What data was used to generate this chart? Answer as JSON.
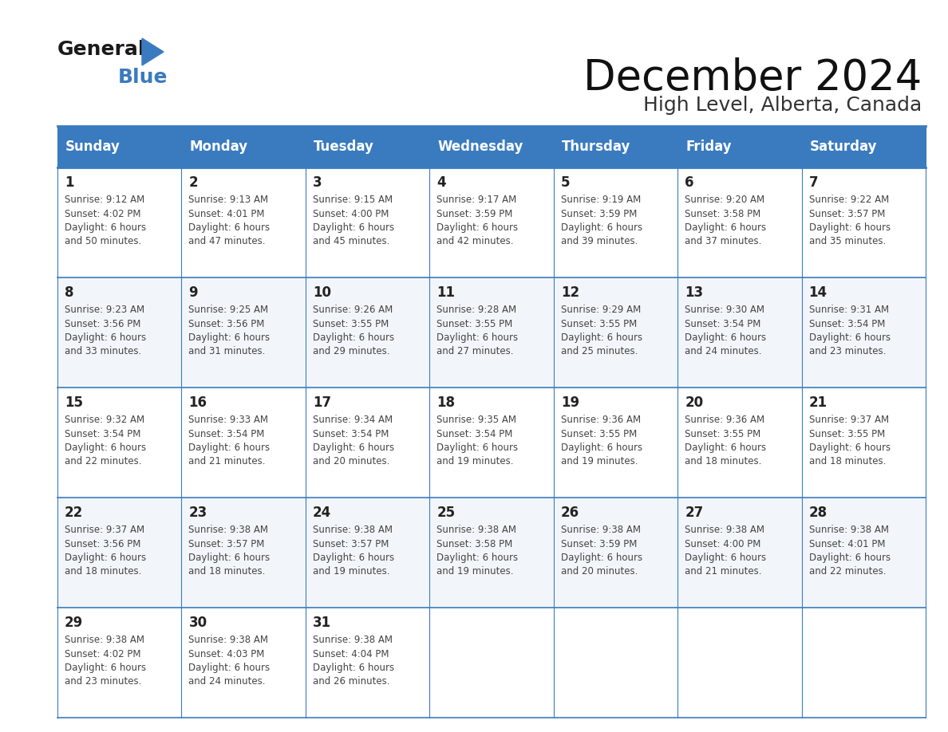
{
  "title": "December 2024",
  "subtitle": "High Level, Alberta, Canada",
  "days_of_week": [
    "Sunday",
    "Monday",
    "Tuesday",
    "Wednesday",
    "Thursday",
    "Friday",
    "Saturday"
  ],
  "header_bg": "#3A7BBF",
  "header_text": "#FFFFFF",
  "row_bg_even": "#FFFFFF",
  "row_bg_odd": "#F2F6FA",
  "cell_border_color": "#3A7BBF",
  "day_num_color": "#222222",
  "text_color": "#444444",
  "calendar_data": [
    [
      {
        "day": 1,
        "sunrise": "9:12 AM",
        "sunset": "4:02 PM",
        "daylight": "6 hours and 50 minutes"
      },
      {
        "day": 2,
        "sunrise": "9:13 AM",
        "sunset": "4:01 PM",
        "daylight": "6 hours and 47 minutes"
      },
      {
        "day": 3,
        "sunrise": "9:15 AM",
        "sunset": "4:00 PM",
        "daylight": "6 hours and 45 minutes"
      },
      {
        "day": 4,
        "sunrise": "9:17 AM",
        "sunset": "3:59 PM",
        "daylight": "6 hours and 42 minutes"
      },
      {
        "day": 5,
        "sunrise": "9:19 AM",
        "sunset": "3:59 PM",
        "daylight": "6 hours and 39 minutes"
      },
      {
        "day": 6,
        "sunrise": "9:20 AM",
        "sunset": "3:58 PM",
        "daylight": "6 hours and 37 minutes"
      },
      {
        "day": 7,
        "sunrise": "9:22 AM",
        "sunset": "3:57 PM",
        "daylight": "6 hours and 35 minutes"
      }
    ],
    [
      {
        "day": 8,
        "sunrise": "9:23 AM",
        "sunset": "3:56 PM",
        "daylight": "6 hours and 33 minutes"
      },
      {
        "day": 9,
        "sunrise": "9:25 AM",
        "sunset": "3:56 PM",
        "daylight": "6 hours and 31 minutes"
      },
      {
        "day": 10,
        "sunrise": "9:26 AM",
        "sunset": "3:55 PM",
        "daylight": "6 hours and 29 minutes"
      },
      {
        "day": 11,
        "sunrise": "9:28 AM",
        "sunset": "3:55 PM",
        "daylight": "6 hours and 27 minutes"
      },
      {
        "day": 12,
        "sunrise": "9:29 AM",
        "sunset": "3:55 PM",
        "daylight": "6 hours and 25 minutes"
      },
      {
        "day": 13,
        "sunrise": "9:30 AM",
        "sunset": "3:54 PM",
        "daylight": "6 hours and 24 minutes"
      },
      {
        "day": 14,
        "sunrise": "9:31 AM",
        "sunset": "3:54 PM",
        "daylight": "6 hours and 23 minutes"
      }
    ],
    [
      {
        "day": 15,
        "sunrise": "9:32 AM",
        "sunset": "3:54 PM",
        "daylight": "6 hours and 22 minutes"
      },
      {
        "day": 16,
        "sunrise": "9:33 AM",
        "sunset": "3:54 PM",
        "daylight": "6 hours and 21 minutes"
      },
      {
        "day": 17,
        "sunrise": "9:34 AM",
        "sunset": "3:54 PM",
        "daylight": "6 hours and 20 minutes"
      },
      {
        "day": 18,
        "sunrise": "9:35 AM",
        "sunset": "3:54 PM",
        "daylight": "6 hours and 19 minutes"
      },
      {
        "day": 19,
        "sunrise": "9:36 AM",
        "sunset": "3:55 PM",
        "daylight": "6 hours and 19 minutes"
      },
      {
        "day": 20,
        "sunrise": "9:36 AM",
        "sunset": "3:55 PM",
        "daylight": "6 hours and 18 minutes"
      },
      {
        "day": 21,
        "sunrise": "9:37 AM",
        "sunset": "3:55 PM",
        "daylight": "6 hours and 18 minutes"
      }
    ],
    [
      {
        "day": 22,
        "sunrise": "9:37 AM",
        "sunset": "3:56 PM",
        "daylight": "6 hours and 18 minutes"
      },
      {
        "day": 23,
        "sunrise": "9:38 AM",
        "sunset": "3:57 PM",
        "daylight": "6 hours and 18 minutes"
      },
      {
        "day": 24,
        "sunrise": "9:38 AM",
        "sunset": "3:57 PM",
        "daylight": "6 hours and 19 minutes"
      },
      {
        "day": 25,
        "sunrise": "9:38 AM",
        "sunset": "3:58 PM",
        "daylight": "6 hours and 19 minutes"
      },
      {
        "day": 26,
        "sunrise": "9:38 AM",
        "sunset": "3:59 PM",
        "daylight": "6 hours and 20 minutes"
      },
      {
        "day": 27,
        "sunrise": "9:38 AM",
        "sunset": "4:00 PM",
        "daylight": "6 hours and 21 minutes"
      },
      {
        "day": 28,
        "sunrise": "9:38 AM",
        "sunset": "4:01 PM",
        "daylight": "6 hours and 22 minutes"
      }
    ],
    [
      {
        "day": 29,
        "sunrise": "9:38 AM",
        "sunset": "4:02 PM",
        "daylight": "6 hours and 23 minutes"
      },
      {
        "day": 30,
        "sunrise": "9:38 AM",
        "sunset": "4:03 PM",
        "daylight": "6 hours and 24 minutes"
      },
      {
        "day": 31,
        "sunrise": "9:38 AM",
        "sunset": "4:04 PM",
        "daylight": "6 hours and 26 minutes"
      },
      null,
      null,
      null,
      null
    ]
  ]
}
